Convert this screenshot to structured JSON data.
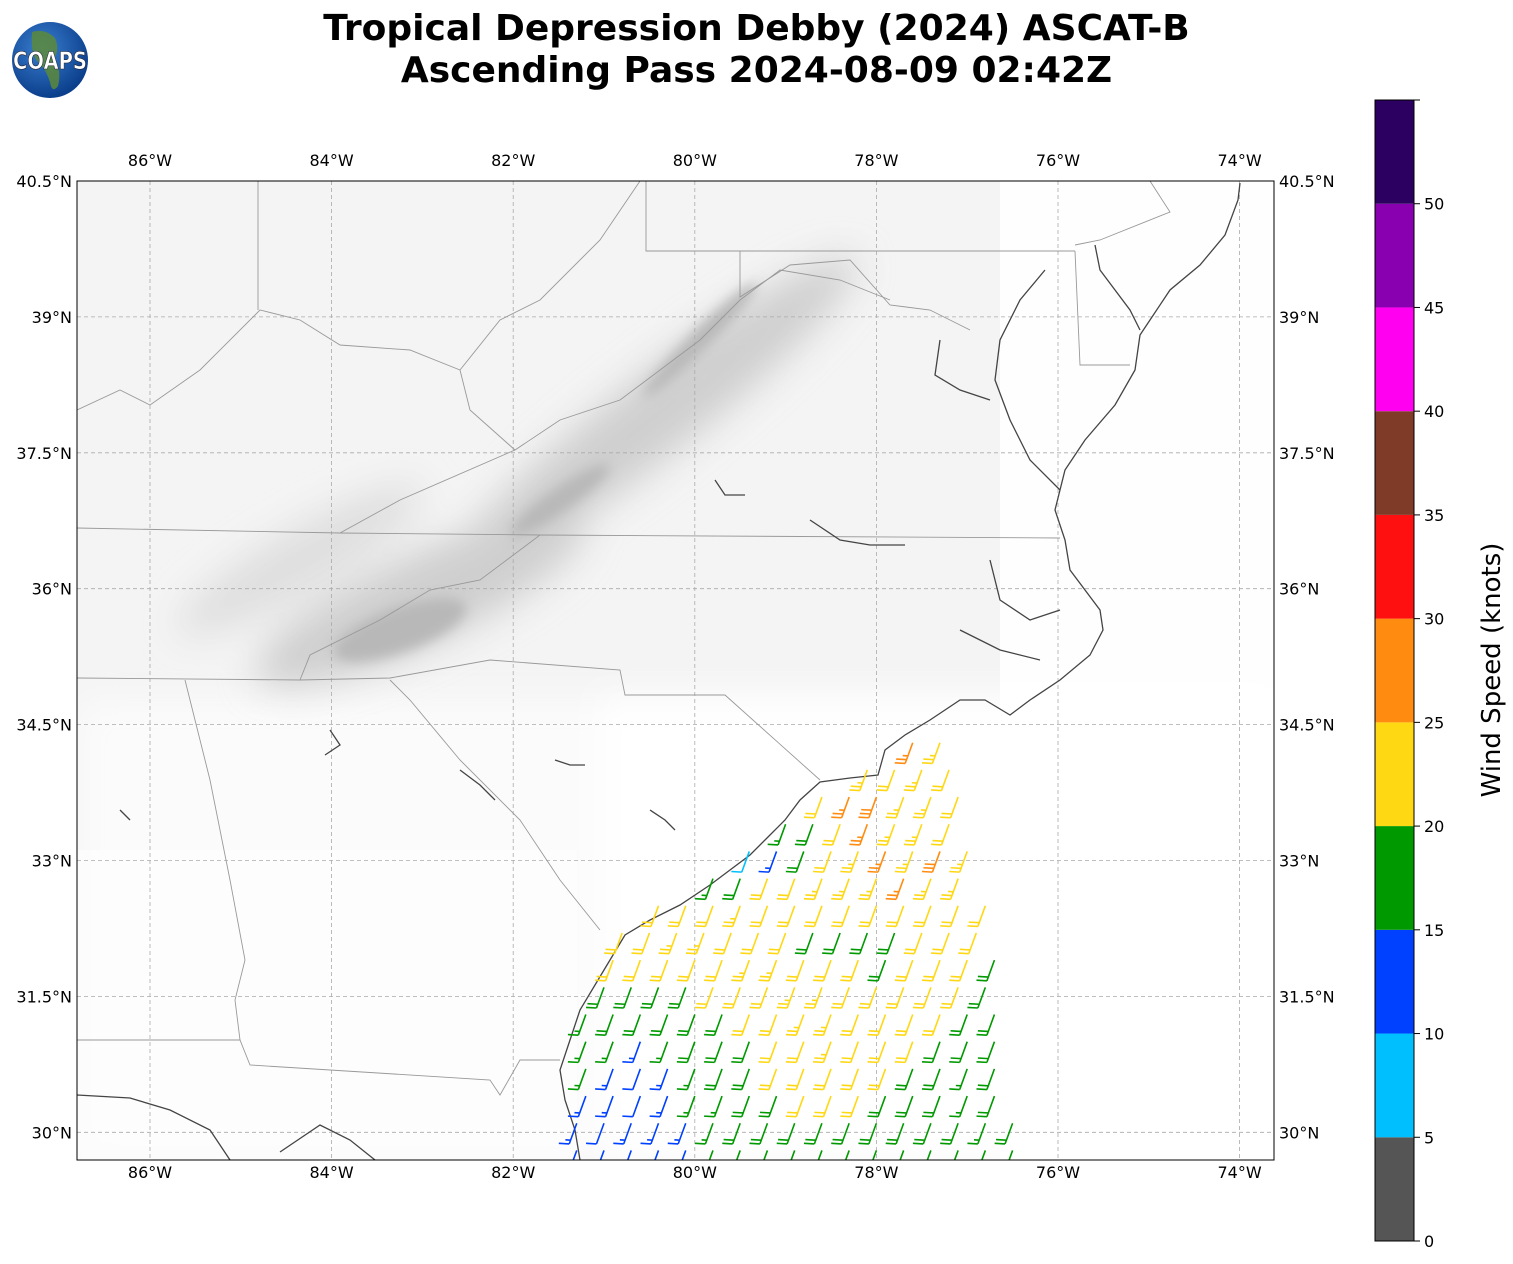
{
  "title": {
    "line1": "Tropical Depression Debby (2024) ASCAT-B",
    "line2": "Ascending Pass 2024-08-09 02:42Z"
  },
  "logo": {
    "text": "COAPS"
  },
  "map": {
    "lon_range": [
      -86.8,
      -73.62
    ],
    "lat_range": [
      29.69,
      40.5
    ],
    "lon_ticks": [
      -86,
      -84,
      -82,
      -80,
      -78,
      -76,
      -74
    ],
    "lon_tick_labels": [
      "86°W",
      "84°W",
      "82°W",
      "80°W",
      "78°W",
      "76°W",
      "74°W"
    ],
    "lat_ticks": [
      40.5,
      39,
      37.5,
      36,
      34.5,
      33,
      31.5,
      30
    ],
    "lat_tick_labels": [
      "40.5°N",
      "39°N",
      "37.5°N",
      "36°N",
      "34.5°N",
      "33°N",
      "31.5°N",
      "30°N"
    ],
    "gridlines": true
  },
  "colorbar": {
    "label": "Wind Speed (knots)",
    "range": [
      0,
      55
    ],
    "ticks": [
      0,
      5,
      10,
      15,
      20,
      25,
      30,
      35,
      40,
      45,
      50
    ],
    "tick_labels": [
      "0",
      "5",
      "10",
      "15",
      "20",
      "25",
      "30",
      "35",
      "40",
      "45",
      "50"
    ],
    "bins": [
      {
        "min": 0,
        "max": 5,
        "color": "#555555"
      },
      {
        "min": 5,
        "max": 10,
        "color": "#00bfff"
      },
      {
        "min": 10,
        "max": 15,
        "color": "#0040ff"
      },
      {
        "min": 15,
        "max": 20,
        "color": "#009900"
      },
      {
        "min": 20,
        "max": 25,
        "color": "#ffd814"
      },
      {
        "min": 25,
        "max": 30,
        "color": "#ff8c10"
      },
      {
        "min": 30,
        "max": 35,
        "color": "#ff1010"
      },
      {
        "min": 35,
        "max": 40,
        "color": "#7f3a28"
      },
      {
        "min": 40,
        "max": 45,
        "color": "#ff00f0"
      },
      {
        "min": 45,
        "max": 50,
        "color": "#8800b0"
      },
      {
        "min": 50,
        "max": 55,
        "color": "#2b0060"
      }
    ]
  },
  "wind_barbs": {
    "direction_from_deg": 200,
    "lon_step": 0.3,
    "rows": [
      {
        "lat": 29.8,
        "lon0": -81.3,
        "speeds": [
          12,
          13,
          12,
          13,
          14,
          16,
          17,
          18,
          18,
          18,
          19,
          19,
          18,
          18,
          17,
          17,
          18
        ]
      },
      {
        "lat": 30.1,
        "lon0": -81.3,
        "speeds": [
          13,
          12,
          13,
          14,
          13,
          17,
          18,
          18,
          19,
          19,
          19,
          18,
          19,
          18,
          18,
          17,
          18
        ]
      },
      {
        "lat": 30.4,
        "lon0": -81.2,
        "speeds": [
          14,
          13,
          12,
          14,
          15,
          17,
          18,
          19,
          20,
          21,
          20,
          19,
          18,
          18,
          17,
          18
        ]
      },
      {
        "lat": 30.7,
        "lon0": -81.2,
        "speeds": [
          16,
          13,
          12,
          13,
          16,
          18,
          19,
          20,
          21,
          22,
          21,
          20,
          19,
          18,
          17,
          18
        ]
      },
      {
        "lat": 31.0,
        "lon0": -81.2,
        "speeds": [
          16,
          17,
          14,
          16,
          18,
          18,
          19,
          21,
          22,
          23,
          22,
          21,
          20,
          19,
          18,
          18
        ]
      },
      {
        "lat": 31.3,
        "lon0": -81.2,
        "speeds": [
          17,
          18,
          18,
          18,
          19,
          19,
          20,
          22,
          23,
          23,
          22,
          22,
          21,
          20,
          19,
          18
        ]
      },
      {
        "lat": 31.6,
        "lon0": -81.0,
        "speeds": [
          18,
          19,
          19,
          19,
          20,
          21,
          22,
          23,
          23,
          22,
          22,
          21,
          21,
          20,
          19
        ]
      },
      {
        "lat": 31.9,
        "lon0": -80.9,
        "speeds": [
          21,
          21,
          22,
          21,
          22,
          23,
          23,
          22,
          21,
          20,
          19,
          21,
          22,
          21,
          19
        ]
      },
      {
        "lat": 32.2,
        "lon0": -80.8,
        "speeds": [
          21,
          22,
          23,
          23,
          22,
          22,
          21,
          19,
          18,
          18,
          19,
          21,
          22,
          21
        ]
      },
      {
        "lat": 32.5,
        "lon0": -80.4,
        "speeds": [
          21,
          22,
          22,
          23,
          22,
          21,
          20,
          21,
          21,
          22,
          22,
          21,
          22
        ]
      },
      {
        "lat": 32.8,
        "lon0": -79.8,
        "speeds": [
          17,
          19,
          20,
          22,
          23,
          23,
          24,
          27,
          24,
          23
        ]
      },
      {
        "lat": 33.1,
        "lon0": -79.4,
        "speeds": [
          8,
          14,
          18,
          22,
          24,
          26,
          24,
          28,
          23
        ]
      },
      {
        "lat": 33.4,
        "lon0": -79.0,
        "speeds": [
          17,
          19,
          22,
          27,
          24,
          23,
          22
        ]
      },
      {
        "lat": 33.7,
        "lon0": -78.6,
        "speeds": [
          22,
          27,
          28,
          24,
          23,
          22
        ]
      },
      {
        "lat": 34.0,
        "lon0": -78.1,
        "speeds": [
          23,
          22,
          24,
          22
        ]
      },
      {
        "lat": 34.3,
        "lon0": -77.6,
        "speeds": [
          27,
          23
        ]
      }
    ]
  }
}
